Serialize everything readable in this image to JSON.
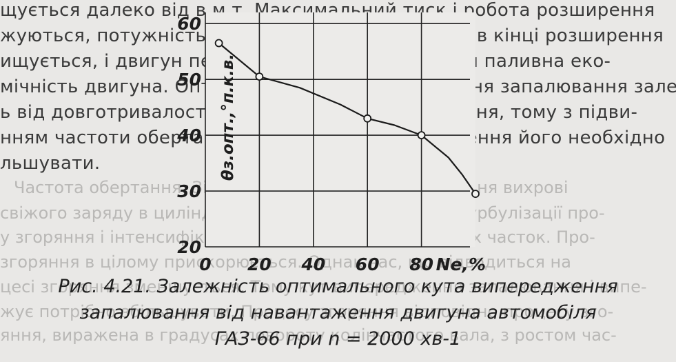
{
  "page_text": {
    "lines": [
      "щується далеко від в.м.т. Максимальний тиск і робота розширення",
      "жуються, потужність падає, а температура газу в кінці розширення",
      "ищується, і двигун перегрівається. Погіршується паливна еко-",
      "мічність двигуна. Оптимальний кут випередження запалювання зале-",
      "ь від довготривалості першої і другої фаз згоряння, тому з підви-",
      "нням частоти обертання і зниженням навантаження його необхідно",
      "льшувати.",
      "Частота обертання. Зі збільшенням частоти обертання вихрові",
      "свіжого заряду в циліндрі посилюються, що сприяє турбулізації про-",
      "у згоряння і інтенсифікації процесу передачі активних часток. Про-",
      "згоряння в цілому прискорюється. Однак час, що відводиться на",
      "цесі згоряння зменшується. Тому кут випередження запалювання і випе-",
      "жує потрібно збільшувати. Процесу згоряння відповідно процесу зго-",
      "яння, виражена в градусах повороту колінчастого вала, з ростом час-"
    ]
  },
  "figure": {
    "caption": [
      "Рис. 4.21. Залежність оптимального кута випередження",
      "запалювання від навантаження двигуна автомобіля",
      "ГАЗ-66 при n = 2000 хв-1"
    ]
  },
  "chart_data": {
    "type": "line",
    "x_tick_labels": [
      "0",
      "20",
      "40",
      "60",
      "80"
    ],
    "y_tick_labels": [
      "20",
      "30",
      "40",
      "50",
      "60"
    ],
    "xlabel": "Ne,%",
    "ylabel": "θз.опт.,°п.к.в.",
    "xlim": [
      0,
      100
    ],
    "ylim": [
      20,
      62
    ],
    "grid": true,
    "series": [
      {
        "x": [
          5,
          20,
          35,
          50,
          60,
          70,
          80,
          90,
          95,
          100
        ],
        "y": [
          56.5,
          50.5,
          48.5,
          45.5,
          43,
          41.8,
          40,
          36,
          33,
          29.5
        ]
      }
    ],
    "markers": [
      {
        "x": 5,
        "y": 56.5
      },
      {
        "x": 20,
        "y": 50.5
      },
      {
        "x": 60,
        "y": 43
      },
      {
        "x": 80,
        "y": 40
      },
      {
        "x": 100,
        "y": 29.5
      }
    ]
  }
}
